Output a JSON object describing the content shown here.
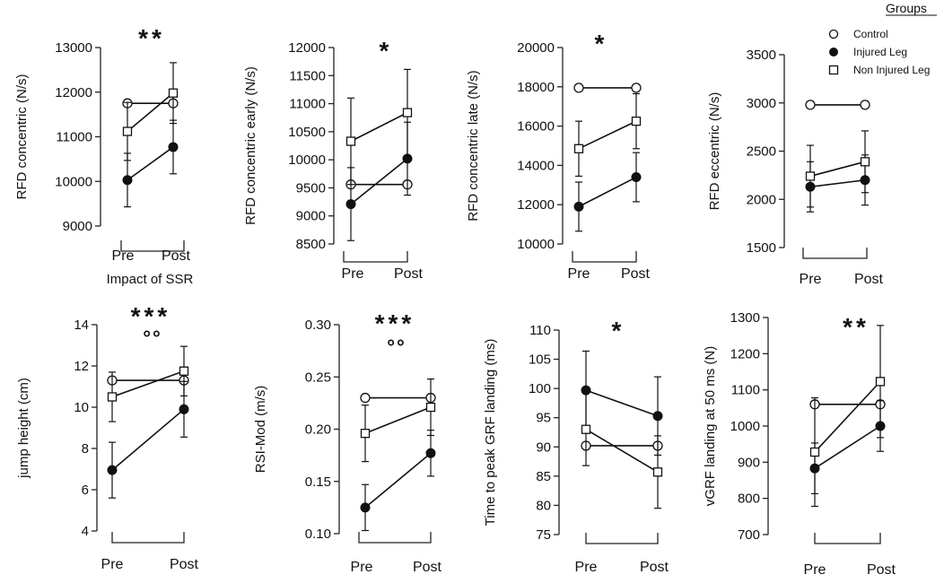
{
  "legend": {
    "title": "Groups",
    "entries": [
      {
        "name": "Control",
        "marker": "open-circle"
      },
      {
        "name": "Injured Leg",
        "marker": "filled-circle"
      },
      {
        "name": "Non Injured Leg",
        "marker": "open-square"
      }
    ]
  },
  "colors": {
    "ink": "#111111",
    "marker_fill": "#ffffff"
  },
  "chart_data": [
    {
      "type": "line",
      "ylabel": "RFD concentric (N/s)",
      "xlabel": "Impact of SSR",
      "categories": [
        "Pre",
        "Post"
      ],
      "yticks": [
        9000,
        10000,
        11000,
        12000,
        13000
      ],
      "ylim": [
        9000,
        13000
      ],
      "significance": "**",
      "secondary_mark": "",
      "series": [
        {
          "name": "Control",
          "values": [
            11750,
            11750
          ],
          "errors": [
            null,
            null
          ]
        },
        {
          "name": "Injured Leg",
          "values": [
            10030,
            10770
          ],
          "errors": [
            600,
            600
          ]
        },
        {
          "name": "Non Injured Leg",
          "values": [
            11120,
            11980
          ],
          "errors": [
            650,
            680
          ]
        }
      ]
    },
    {
      "type": "line",
      "ylabel": "RFD concentric early (N/s)",
      "xlabel": "",
      "categories": [
        "Pre",
        "Post"
      ],
      "yticks": [
        8500,
        9000,
        9500,
        10000,
        10500,
        11000,
        11500,
        12000
      ],
      "ylim": [
        8500,
        12000
      ],
      "significance": "*",
      "secondary_mark": "",
      "series": [
        {
          "name": "Control",
          "values": [
            9560,
            9560
          ],
          "errors": [
            null,
            null
          ]
        },
        {
          "name": "Injured Leg",
          "values": [
            9210,
            10020
          ],
          "errors": [
            650,
            650
          ]
        },
        {
          "name": "Non Injured Leg",
          "values": [
            10330,
            10840
          ],
          "errors": [
            770,
            770
          ]
        }
      ]
    },
    {
      "type": "line",
      "ylabel": "RFD concentric late (N/s)",
      "xlabel": "",
      "categories": [
        "Pre",
        "Post"
      ],
      "yticks": [
        10000,
        12000,
        14000,
        16000,
        18000,
        20000
      ],
      "ylim": [
        10000,
        20000
      ],
      "significance": "*",
      "secondary_mark": "",
      "series": [
        {
          "name": "Control",
          "values": [
            17950,
            17950
          ],
          "errors": [
            null,
            null
          ]
        },
        {
          "name": "Injured Leg",
          "values": [
            11900,
            13400
          ],
          "errors": [
            1250,
            1250
          ]
        },
        {
          "name": "Non Injured Leg",
          "values": [
            14850,
            16250
          ],
          "errors": [
            1400,
            1400
          ]
        }
      ]
    },
    {
      "type": "line",
      "ylabel": "RFD eccentric (N/s)",
      "xlabel": "",
      "categories": [
        "Pre",
        "Post"
      ],
      "yticks": [
        1500,
        2000,
        2500,
        3000,
        3500
      ],
      "ylim": [
        1500,
        3500
      ],
      "significance": "",
      "secondary_mark": "",
      "series": [
        {
          "name": "Control",
          "values": [
            2980,
            2980
          ],
          "errors": [
            null,
            null
          ]
        },
        {
          "name": "Injured Leg",
          "values": [
            2130,
            2200
          ],
          "errors": [
            260,
            260
          ]
        },
        {
          "name": "Non Injured Leg",
          "values": [
            2240,
            2390
          ],
          "errors": [
            320,
            320
          ]
        }
      ]
    },
    {
      "type": "line",
      "ylabel": "jump height (cm)",
      "xlabel": "",
      "categories": [
        "Pre",
        "Post"
      ],
      "yticks": [
        4,
        6,
        8,
        10,
        12,
        14
      ],
      "ylim": [
        4,
        14
      ],
      "significance": "***",
      "secondary_mark": "°°",
      "series": [
        {
          "name": "Control",
          "values": [
            11.3,
            11.3
          ],
          "errors": [
            null,
            null
          ]
        },
        {
          "name": "Injured Leg",
          "values": [
            6.95,
            9.9
          ],
          "errors": [
            1.35,
            1.35
          ]
        },
        {
          "name": "Non Injured Leg",
          "values": [
            10.5,
            11.75
          ],
          "errors": [
            1.2,
            1.2
          ]
        }
      ]
    },
    {
      "type": "line",
      "ylabel": "RSI-Mod (m/s)",
      "xlabel": "",
      "categories": [
        "Pre",
        "Post"
      ],
      "yticks": [
        0.1,
        0.15,
        0.2,
        0.25,
        0.3
      ],
      "ylim": [
        0.1,
        0.3
      ],
      "significance": "***",
      "secondary_mark": "°°",
      "series": [
        {
          "name": "Control",
          "values": [
            0.23,
            0.23
          ],
          "errors": [
            null,
            null
          ]
        },
        {
          "name": "Injured Leg",
          "values": [
            0.125,
            0.177
          ],
          "errors": [
            0.022,
            0.022
          ]
        },
        {
          "name": "Non Injured Leg",
          "values": [
            0.196,
            0.221
          ],
          "errors": [
            0.027,
            0.027
          ]
        }
      ]
    },
    {
      "type": "line",
      "ylabel": "Time to peak GRF landing (ms)",
      "xlabel": "",
      "categories": [
        "Pre",
        "Post"
      ],
      "yticks": [
        75,
        80,
        85,
        90,
        95,
        100,
        105,
        110
      ],
      "ylim": [
        75,
        110
      ],
      "significance": "*",
      "secondary_mark": "",
      "series": [
        {
          "name": "Control",
          "values": [
            90.2,
            90.2
          ],
          "errors": [
            null,
            null
          ]
        },
        {
          "name": "Injured Leg",
          "values": [
            99.7,
            95.3
          ],
          "errors": [
            6.7,
            6.7
          ]
        },
        {
          "name": "Non Injured Leg",
          "values": [
            93.0,
            85.7
          ],
          "errors": [
            6.2,
            6.2
          ]
        }
      ]
    },
    {
      "type": "line",
      "ylabel": "vGRF landing at 50 ms (N)",
      "xlabel": "",
      "categories": [
        "Pre",
        "Post"
      ],
      "yticks": [
        700,
        800,
        900,
        1000,
        1100,
        1200,
        1300
      ],
      "ylim": [
        700,
        1300
      ],
      "significance": "**",
      "secondary_mark": "",
      "series": [
        {
          "name": "Control",
          "values": [
            1060,
            1060
          ],
          "errors": [
            null,
            null
          ]
        },
        {
          "name": "Injured Leg",
          "values": [
            883,
            1000
          ],
          "errors": [
            70,
            70
          ]
        },
        {
          "name": "Non Injured Leg",
          "values": [
            928,
            1123
          ],
          "errors": [
            150,
            155
          ]
        }
      ]
    }
  ]
}
